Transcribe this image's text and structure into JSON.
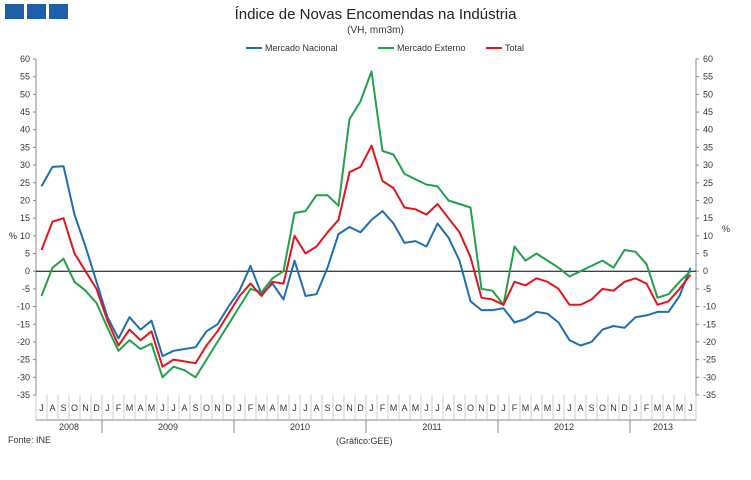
{
  "header": {
    "title": "Índice de Novas Encomendas na Indústria",
    "subtitle": "(VH, mm3m)"
  },
  "footer": {
    "source": "Fonte: INE",
    "note": "(Gráfico:GEE)"
  },
  "colors": {
    "Mercado Nacional": "#1f6db3",
    "Mercado Externo": "#22a04a",
    "Total": "#e0161d",
    "zero_line": "#000000",
    "axis": "#888888"
  },
  "chart_data": {
    "type": "line",
    "xlabel": "",
    "ylabel": "%",
    "ylabel_right": "%",
    "ylim": [
      -35,
      60
    ],
    "yticks": [
      60,
      55,
      50,
      45,
      40,
      35,
      30,
      25,
      20,
      15,
      10,
      5,
      0,
      -5,
      -10,
      -15,
      -20,
      -25,
      -30,
      -35
    ],
    "grid": false,
    "legend_position": "top",
    "month_labels": [
      "J",
      "A",
      "S",
      "O",
      "N",
      "D",
      "J",
      "F",
      "M",
      "A",
      "M",
      "J",
      "J",
      "A",
      "S",
      "O",
      "N",
      "D",
      "J",
      "F",
      "M",
      "A",
      "M",
      "J",
      "J",
      "A",
      "S",
      "O",
      "N",
      "D",
      "J",
      "F",
      "M",
      "A",
      "M",
      "J",
      "J",
      "A",
      "S",
      "O",
      "N",
      "D",
      "J",
      "F",
      "M",
      "A",
      "M",
      "J",
      "J",
      "A",
      "S",
      "O",
      "N",
      "D",
      "J",
      "F",
      "M",
      "A",
      "M",
      "J"
    ],
    "year_groups": [
      {
        "label": "2008",
        "months": 6
      },
      {
        "label": "2009",
        "months": 12
      },
      {
        "label": "2010",
        "months": 12
      },
      {
        "label": "2011",
        "months": 12
      },
      {
        "label": "2012",
        "months": 12
      },
      {
        "label": "2013",
        "months": 6
      }
    ],
    "series": [
      {
        "name": "Mercado Nacional",
        "values": [
          24,
          29.5,
          29.7,
          16,
          7,
          -3,
          -13,
          -19,
          -13,
          -16.5,
          -14,
          -24,
          -22.5,
          -22,
          -21.5,
          -17,
          -15,
          -10,
          -5.5,
          1.5,
          -6.5,
          -3.5,
          -8,
          3,
          -7,
          -6.5,
          1,
          10.5,
          12.5,
          11,
          14.5,
          17,
          13.5,
          8,
          8.5,
          7,
          13.5,
          9.5,
          3,
          -8.5,
          -11,
          -11,
          -10.5,
          -14.5,
          -13.5,
          -11.5,
          -12,
          -14.5,
          -19.5,
          -21,
          -20,
          -16.5,
          -15.5,
          -16,
          -13,
          -12.5,
          -11.5,
          -11.5,
          -7,
          1
        ]
      },
      {
        "name": "Mercado Externo",
        "values": [
          -7,
          1,
          3.5,
          -3,
          -5.5,
          -9,
          -16,
          -22.5,
          -19.5,
          -22,
          -20.5,
          -30,
          -27,
          -28,
          -30,
          -25,
          -20,
          -15,
          -10,
          -5,
          -6,
          -2,
          0,
          16.5,
          17,
          21.5,
          21.5,
          18.5,
          43,
          48,
          56.5,
          34,
          33,
          27.5,
          26,
          24.5,
          24,
          20,
          19,
          18,
          -5,
          -5.5,
          -9.5,
          7,
          3,
          5,
          3,
          1,
          -1.5,
          0,
          1.5,
          3,
          1,
          6,
          5.5,
          2,
          -7.5,
          -6.5,
          -3,
          0
        ]
      },
      {
        "name": "Total",
        "values": [
          6,
          14,
          15,
          5,
          0,
          -5,
          -14,
          -21,
          -16.5,
          -19.5,
          -17,
          -27,
          -25,
          -25.5,
          -26,
          -21,
          -17,
          -12,
          -7,
          -3.5,
          -7,
          -3,
          -3.5,
          10,
          5,
          7,
          11,
          14.5,
          28,
          29.5,
          35.5,
          25.5,
          23.5,
          18,
          17.5,
          16,
          19,
          15,
          11,
          4,
          -7.5,
          -8,
          -9.5,
          -3,
          -4,
          -2,
          -3,
          -5,
          -9.5,
          -9.5,
          -8,
          -5,
          -5.5,
          -3,
          -2,
          -3.5,
          -9.5,
          -8.5,
          -5,
          -1
        ]
      }
    ]
  }
}
